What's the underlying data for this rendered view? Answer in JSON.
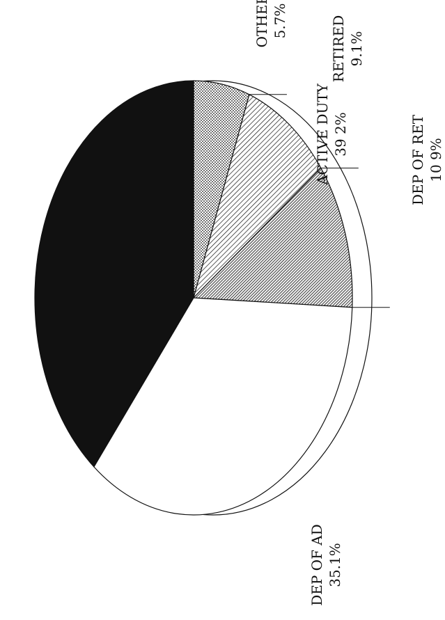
{
  "chart_data": {
    "type": "pie",
    "orientation": "rotated-90-clockwise",
    "style": "3d-tilted",
    "title": "",
    "slices": [
      {
        "label": "ACTIVE DUTY",
        "value_text": "39 2%",
        "value": 39.2,
        "fill": "solid-black"
      },
      {
        "label": "DEP OF AD",
        "value_text": "35.1%",
        "value": 35.1,
        "fill": "white"
      },
      {
        "label": "DEP OF RET",
        "value_text": "10 9%",
        "value": 10.9,
        "fill": "dark-hatch"
      },
      {
        "label": "RETIRED",
        "value_text": "9.1%",
        "value": 9.1,
        "fill": "light-hatch"
      },
      {
        "label": "OTHER",
        "value_text": "5.7%",
        "value": 5.7,
        "fill": "dots"
      }
    ]
  },
  "colors": {
    "ink": "#111111",
    "paper": "#ffffff"
  }
}
